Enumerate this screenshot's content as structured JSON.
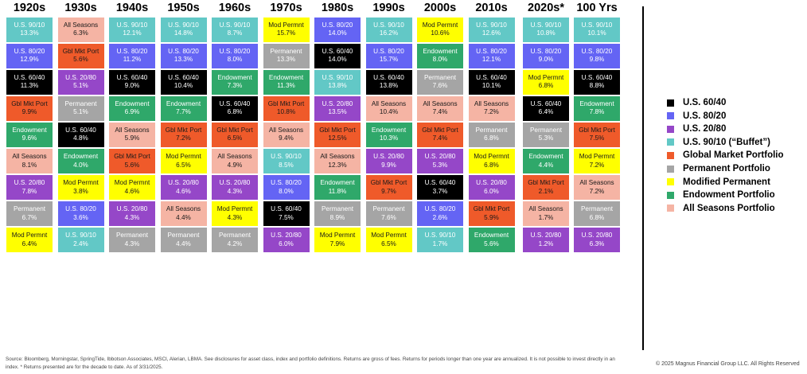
{
  "chart_data": {
    "type": "table",
    "unit": "%",
    "columns": [
      {
        "header": "1920s",
        "cells": [
          {
            "name": "U.S. 90/10",
            "value": 13.3
          },
          {
            "name": "U.S. 80/20",
            "value": 12.9
          },
          {
            "name": "U.S. 60/40",
            "value": 11.3
          },
          {
            "name": "Gbl Mkt Port",
            "value": 9.9
          },
          {
            "name": "Endowment",
            "value": 9.6
          },
          {
            "name": "All Seasons",
            "value": 8.1
          },
          {
            "name": "U.S. 20/80",
            "value": 7.8
          },
          {
            "name": "Permanent",
            "value": 6.7
          },
          {
            "name": "Mod Permnt",
            "value": 6.4
          }
        ]
      },
      {
        "header": "1930s",
        "cells": [
          {
            "name": "All Seasons",
            "value": 6.3
          },
          {
            "name": "Gbl Mkt Port",
            "value": 5.6
          },
          {
            "name": "U.S. 20/80",
            "value": 5.1
          },
          {
            "name": "Permanent",
            "value": 5.1
          },
          {
            "name": "U.S. 60/40",
            "value": 4.8
          },
          {
            "name": "Endowment",
            "value": 4.0
          },
          {
            "name": "Mod Permnt",
            "value": 3.8
          },
          {
            "name": "U.S. 80/20",
            "value": 3.6
          },
          {
            "name": "U.S. 90/10",
            "value": 2.4
          }
        ]
      },
      {
        "header": "1940s",
        "cells": [
          {
            "name": "U.S. 90/10",
            "value": 12.1
          },
          {
            "name": "U.S. 80/20",
            "value": 11.2
          },
          {
            "name": "U.S. 60/40",
            "value": 9.0
          },
          {
            "name": "Endowment",
            "value": 6.9
          },
          {
            "name": "All Seasons",
            "value": 5.9
          },
          {
            "name": "Gbl Mkt Port",
            "value": 5.6
          },
          {
            "name": "Mod Permnt",
            "value": 4.6
          },
          {
            "name": "U.S. 20/80",
            "value": 4.3
          },
          {
            "name": "Permanent",
            "value": 4.3
          }
        ]
      },
      {
        "header": "1950s",
        "cells": [
          {
            "name": "U.S. 90/10",
            "value": 14.8
          },
          {
            "name": "U.S. 80/20",
            "value": 13.3
          },
          {
            "name": "U.S. 60/40",
            "value": 10.4
          },
          {
            "name": "Endowment",
            "value": 7.7
          },
          {
            "name": "Gbl Mkt Port",
            "value": 7.2
          },
          {
            "name": "Mod Permnt",
            "value": 6.5
          },
          {
            "name": "U.S. 20/80",
            "value": 4.6
          },
          {
            "name": "All Seasons",
            "value": 4.4
          },
          {
            "name": "Permanent",
            "value": 4.4
          }
        ]
      },
      {
        "header": "1960s",
        "cells": [
          {
            "name": "U.S. 90/10",
            "value": 8.7
          },
          {
            "name": "U.S. 80/20",
            "value": 8.0
          },
          {
            "name": "Endowment",
            "value": 7.3
          },
          {
            "name": "U.S. 60/40",
            "value": 6.8
          },
          {
            "name": "Gbl Mkt Port",
            "value": 6.5
          },
          {
            "name": "All Seasons",
            "value": 4.9
          },
          {
            "name": "U.S. 20/80",
            "value": 4.3
          },
          {
            "name": "Mod Permnt",
            "value": 4.3
          },
          {
            "name": "Permanent",
            "value": 4.2
          }
        ]
      },
      {
        "header": "1970s",
        "cells": [
          {
            "name": "Mod Permnt",
            "value": 15.7
          },
          {
            "name": "Permanent",
            "value": 13.3
          },
          {
            "name": "Endowment",
            "value": 11.3
          },
          {
            "name": "Gbl Mkt Port",
            "value": 10.8
          },
          {
            "name": "All Seasons",
            "value": 9.4
          },
          {
            "name": "U.S. 90/10",
            "value": 8.5
          },
          {
            "name": "U.S. 80/20",
            "value": 8.0
          },
          {
            "name": "U.S. 60/40",
            "value": 7.5
          },
          {
            "name": "U.S. 20/80",
            "value": 6.0
          }
        ]
      },
      {
        "header": "1980s",
        "cells": [
          {
            "name": "U.S. 80/20",
            "value": 14.0
          },
          {
            "name": "U.S. 60/40",
            "value": 14.0
          },
          {
            "name": "U.S. 90/10",
            "value": 13.8
          },
          {
            "name": "U.S. 20/80",
            "value": 13.5
          },
          {
            "name": "Gbl Mkt Port",
            "value": 12.5
          },
          {
            "name": "All Seasons",
            "value": 12.3
          },
          {
            "name": "Endowment",
            "value": 11.8
          },
          {
            "name": "Permanent",
            "value": 8.9
          },
          {
            "name": "Mod Permnt",
            "value": 7.9
          }
        ]
      },
      {
        "header": "1990s",
        "cells": [
          {
            "name": "U.S. 90/10",
            "value": 16.2
          },
          {
            "name": "U.S. 80/20",
            "value": 15.7
          },
          {
            "name": "U.S. 60/40",
            "value": 13.8
          },
          {
            "name": "All Seasons",
            "value": 10.4
          },
          {
            "name": "Endowment",
            "value": 10.3
          },
          {
            "name": "U.S. 20/80",
            "value": 9.9
          },
          {
            "name": "Gbl Mkt Port",
            "value": 9.7
          },
          {
            "name": "Permanent",
            "value": 7.6
          },
          {
            "name": "Mod Permnt",
            "value": 6.5
          }
        ]
      },
      {
        "header": "2000s",
        "cells": [
          {
            "name": "Mod Permnt",
            "value": 10.6
          },
          {
            "name": "Endowment",
            "value": 8.0
          },
          {
            "name": "Permanent",
            "value": 7.6
          },
          {
            "name": "All Seasons",
            "value": 7.4
          },
          {
            "name": "Gbl Mkt Port",
            "value": 7.4
          },
          {
            "name": "U.S. 20/80",
            "value": 5.3
          },
          {
            "name": "U.S. 60/40",
            "value": 3.7
          },
          {
            "name": "U.S. 80/20",
            "value": 2.6
          },
          {
            "name": "U.S. 90/10",
            "value": 1.7
          }
        ]
      },
      {
        "header": "2010s",
        "cells": [
          {
            "name": "U.S. 90/10",
            "value": 12.6
          },
          {
            "name": "U.S. 80/20",
            "value": 12.1
          },
          {
            "name": "U.S. 60/40",
            "value": 10.1
          },
          {
            "name": "All Seasons",
            "value": 7.2
          },
          {
            "name": "Permanent",
            "value": 6.8
          },
          {
            "name": "Mod Permnt",
            "value": 6.8
          },
          {
            "name": "U.S. 20/80",
            "value": 6.0
          },
          {
            "name": "Gbl Mkt Port",
            "value": 5.9
          },
          {
            "name": "Endowment",
            "value": 5.6
          }
        ]
      },
      {
        "header": "2020s*",
        "cells": [
          {
            "name": "U.S. 90/10",
            "value": 10.8
          },
          {
            "name": "U.S. 80/20",
            "value": 9.0
          },
          {
            "name": "Mod Permnt",
            "value": 6.8
          },
          {
            "name": "U.S. 60/40",
            "value": 6.4
          },
          {
            "name": "Permanent",
            "value": 5.3
          },
          {
            "name": "Endowment",
            "value": 4.4
          },
          {
            "name": "Gbl Mkt Port",
            "value": 2.1
          },
          {
            "name": "All Seasons",
            "value": 1.7
          },
          {
            "name": "U.S. 20/80",
            "value": 1.2
          }
        ]
      },
      {
        "header": "100 Yrs",
        "cells": [
          {
            "name": "U.S. 90/10",
            "value": 10.1
          },
          {
            "name": "U.S. 80/20",
            "value": 9.8
          },
          {
            "name": "U.S. 60/40",
            "value": 8.8
          },
          {
            "name": "Endowment",
            "value": 7.8
          },
          {
            "name": "Gbl Mkt Port",
            "value": 7.5
          },
          {
            "name": "Mod Permnt",
            "value": 7.2
          },
          {
            "name": "All Seasons",
            "value": 7.2
          },
          {
            "name": "Permanent",
            "value": 6.8
          },
          {
            "name": "U.S. 20/80",
            "value": 6.3
          }
        ]
      }
    ],
    "colors": {
      "U.S. 60/40": {
        "bg": "#000000",
        "fg": "#ffffff"
      },
      "U.S. 80/20": {
        "bg": "#6464f4",
        "fg": "#ffffff"
      },
      "U.S. 20/80": {
        "bg": "#9547c8",
        "fg": "#ffffff"
      },
      "U.S. 90/10": {
        "bg": "#62c8c6",
        "fg": "#ffffff"
      },
      "Gbl Mkt Port": {
        "bg": "#ef5a2a",
        "fg": "#1a1a1a"
      },
      "Permanent": {
        "bg": "#a5a5a5",
        "fg": "#ffffff"
      },
      "Mod Permnt": {
        "bg": "#ffff00",
        "fg": "#1a1a1a"
      },
      "Endowment": {
        "bg": "#2fa86a",
        "fg": "#ffffff"
      },
      "All Seasons": {
        "bg": "#f5b4a4",
        "fg": "#1a1a1a"
      }
    },
    "legend": [
      {
        "label": "U.S. 60/40",
        "color": "#000000"
      },
      {
        "label": "U.S. 80/20",
        "color": "#6464f4"
      },
      {
        "label": "U.S. 20/80",
        "color": "#9547c8"
      },
      {
        "label": "U.S. 90/10 (“Buffet”)",
        "color": "#62c8c6"
      },
      {
        "label": "Global Market Portfolio",
        "color": "#ef5a2a"
      },
      {
        "label": "Permanent Portfolio",
        "color": "#a5a5a5"
      },
      {
        "label": "Modified Permanent",
        "color": "#ffff00"
      },
      {
        "label": "Endowment Portfolio",
        "color": "#2fa86a"
      },
      {
        "label": "All Seasons Portfolio",
        "color": "#f5b4a4"
      }
    ]
  },
  "footer": {
    "source": "Source: Bloomberg, Morningstar, SpringTide, Ibbotson Associates, MSCI, Alerian, LBMA. See disclosures for asset class, index and portfolio definitions. Returns are gross of fees. Returns for periods longer than one year are annualized. It is not possible to invest directly in an index. * Returns presented are for the decade to date. As of 3/31/2025.",
    "copyright": "© 2025 Magnus Financial Group LLC. All Rights Reserved"
  }
}
